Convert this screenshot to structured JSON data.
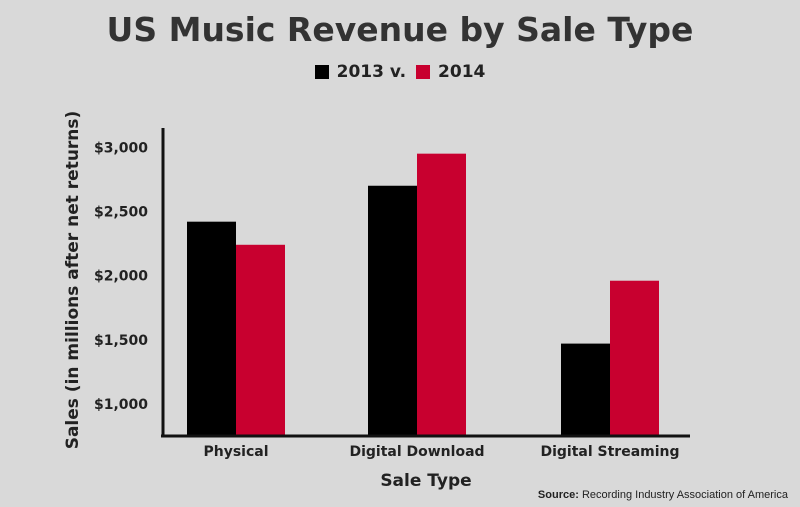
{
  "chart_data": {
    "type": "bar",
    "title": "US Music Revenue by Sale Type",
    "categories": [
      "Physical",
      "Digital Download",
      "Digital Streaming"
    ],
    "series": [
      {
        "name": "2013 v.",
        "values": [
          2420,
          2700,
          1470
        ],
        "color": "#000000"
      },
      {
        "name": "2014",
        "values": [
          2240,
          2950,
          1960
        ],
        "color": "#c8002f"
      }
    ],
    "xlabel": "Sale Type",
    "ylabel": "Sales (in millions after net returns)",
    "ylim": [
      750,
      3150
    ],
    "yticks": [
      {
        "value": 1000,
        "label": "$1,000"
      },
      {
        "value": 1500,
        "label": "$1,500"
      },
      {
        "value": 2000,
        "label": "$2,000"
      },
      {
        "value": 2500,
        "label": "$2,500"
      },
      {
        "value": 3000,
        "label": "$3,000"
      }
    ],
    "grid": false,
    "legend_position": "top-center"
  },
  "source": {
    "label": "Source:",
    "text": " Recording Industry Association of America"
  }
}
